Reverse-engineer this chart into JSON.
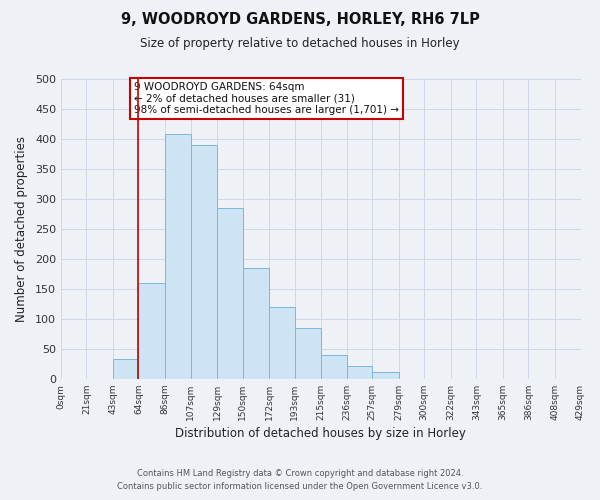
{
  "title": "9, WOODROYD GARDENS, HORLEY, RH6 7LP",
  "subtitle": "Size of property relative to detached houses in Horley",
  "xlabel": "Distribution of detached houses by size in Horley",
  "ylabel": "Number of detached properties",
  "bar_edges": [
    0,
    21,
    43,
    64,
    86,
    107,
    129,
    150,
    172,
    193,
    215,
    236,
    257,
    279,
    300,
    322,
    343,
    365,
    386,
    408,
    429
  ],
  "bar_heights": [
    0,
    0,
    33,
    160,
    408,
    390,
    285,
    185,
    120,
    85,
    40,
    22,
    12,
    0,
    0,
    0,
    0,
    0,
    0,
    0
  ],
  "tick_labels": [
    "0sqm",
    "21sqm",
    "43sqm",
    "64sqm",
    "86sqm",
    "107sqm",
    "129sqm",
    "150sqm",
    "172sqm",
    "193sqm",
    "215sqm",
    "236sqm",
    "257sqm",
    "279sqm",
    "300sqm",
    "322sqm",
    "343sqm",
    "365sqm",
    "386sqm",
    "408sqm",
    "429sqm"
  ],
  "ylim": [
    0,
    500
  ],
  "yticks": [
    0,
    50,
    100,
    150,
    200,
    250,
    300,
    350,
    400,
    450,
    500
  ],
  "bar_facecolor": "#cde4f5",
  "bar_edgecolor": "#7ab8d9",
  "vline_x": 64,
  "vline_color": "#cc0000",
  "annotation_text_line1": "9 WOODROYD GARDENS: 64sqm",
  "annotation_text_line2": "← 2% of detached houses are smaller (31)",
  "annotation_text_line3": "98% of semi-detached houses are larger (1,701) →",
  "annotation_box_color": "#cc0000",
  "grid_color": "#d0d8e8",
  "bg_color": "#eef2f7",
  "footer_line1": "Contains HM Land Registry data © Crown copyright and database right 2024.",
  "footer_line2": "Contains public sector information licensed under the Open Government Licence v3.0."
}
